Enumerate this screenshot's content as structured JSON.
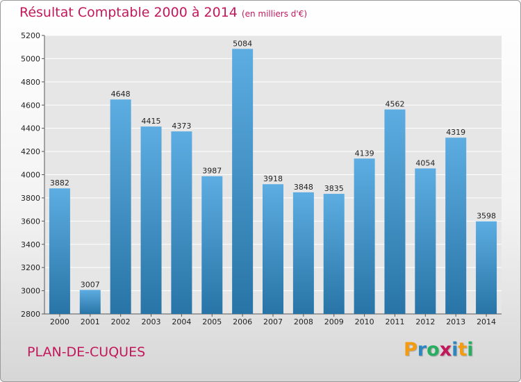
{
  "header": {
    "title": "Résultat Comptable 2000 à 2014",
    "unit": "(en milliers d'€)"
  },
  "footer": {
    "town": "PLAN-DE-CUQUES"
  },
  "logo": {
    "letters": [
      "P",
      "r",
      "o",
      "x",
      "i",
      "t",
      "i"
    ],
    "colors": [
      "#f39c12",
      "#2e86c1",
      "#27ae60",
      "#c2185b",
      "#2e86c1",
      "#f39c12",
      "#27ae60"
    ]
  },
  "colors": {
    "title": "#c2185b",
    "bar_light": "#5dade2",
    "bar_dark": "#2874a6",
    "grid": "#ffffff",
    "plot_bg": "#e6e6e6"
  },
  "chart_data": {
    "type": "bar",
    "title": "Résultat Comptable 2000 à 2014",
    "xlabel": "",
    "ylabel": "",
    "categories": [
      "2000",
      "2001",
      "2002",
      "2003",
      "2004",
      "2005",
      "2006",
      "2007",
      "2008",
      "2009",
      "2010",
      "2011",
      "2012",
      "2013",
      "2014"
    ],
    "values": [
      3882,
      3007,
      4648,
      4415,
      4373,
      3987,
      5084,
      3918,
      3848,
      3835,
      4139,
      4562,
      4054,
      4319,
      3598
    ],
    "ylim": [
      2800,
      5200
    ],
    "yticks": [
      2800,
      3000,
      3200,
      3400,
      3600,
      3800,
      4000,
      4200,
      4400,
      4600,
      4800,
      5000,
      5200
    ],
    "grid": true
  }
}
